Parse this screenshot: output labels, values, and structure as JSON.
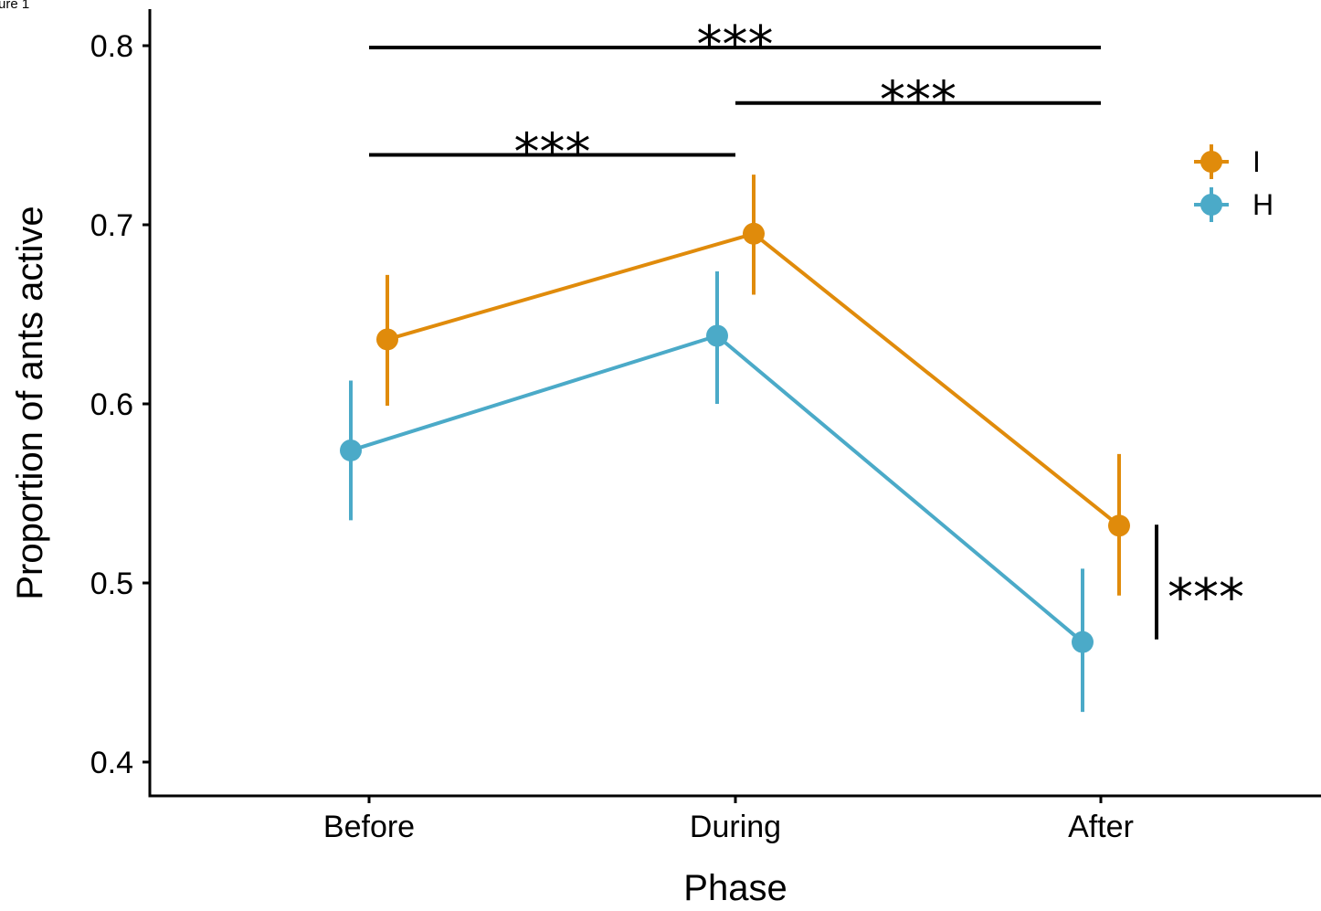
{
  "corner_label": "ure 1",
  "chart_data": {
    "type": "line",
    "xlabel": "Phase",
    "ylabel": "Proportion of ants active",
    "categories": [
      "Before",
      "During",
      "After"
    ],
    "ylim": [
      0.38,
      0.82
    ],
    "yticks": [
      0.4,
      0.5,
      0.6,
      0.7,
      0.8
    ],
    "ytick_labels": [
      "0.4",
      "0.5",
      "0.6",
      "0.7",
      "0.8"
    ],
    "error_bars": true,
    "grid": false,
    "legend_position": "top-right",
    "series": [
      {
        "name": "I",
        "color": "#E08B0B",
        "values": [
          0.636,
          0.695,
          0.532
        ],
        "lower": [
          0.599,
          0.661,
          0.493
        ],
        "upper": [
          0.672,
          0.728,
          0.572
        ]
      },
      {
        "name": "H",
        "color": "#4BAAC8",
        "values": [
          0.574,
          0.638,
          0.467
        ],
        "lower": [
          0.535,
          0.6,
          0.428
        ],
        "upper": [
          0.613,
          0.674,
          0.508
        ]
      }
    ],
    "significance": [
      {
        "label": "***",
        "from": "Before",
        "to": "After",
        "y": 0.799
      },
      {
        "label": "***",
        "from": "During",
        "to": "After",
        "y": 0.768
      },
      {
        "label": "***",
        "from": "Before",
        "to": "During",
        "y": 0.739
      },
      {
        "label": "***",
        "between_series_at": "After",
        "y_from": 0.468,
        "y_to": 0.532
      }
    ]
  }
}
